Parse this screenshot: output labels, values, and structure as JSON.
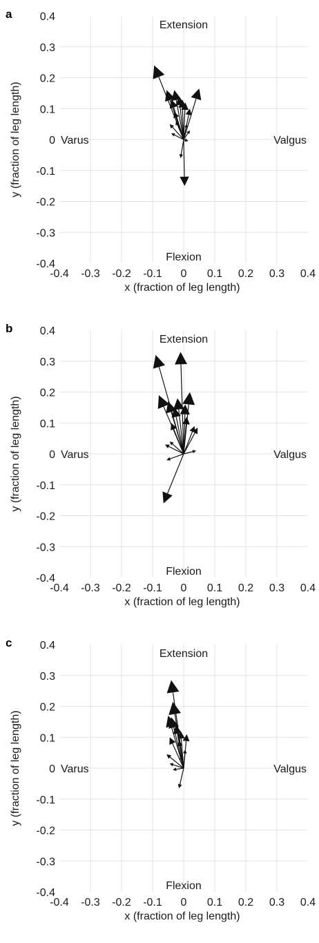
{
  "chart_data": [
    {
      "type": "quiver",
      "panel_label": "a",
      "xlabel": "x (fraction of leg length)",
      "ylabel": "y (fraction of leg length)",
      "xlim": [
        -0.4,
        0.4
      ],
      "ylim": [
        -0.4,
        0.4
      ],
      "xticks": [
        "-0.4",
        "-0.3",
        "-0.2",
        "-0.1",
        "0",
        "0.1",
        "0.2",
        "0.3",
        "0.4"
      ],
      "yticks": [
        "0.4",
        "0.3",
        "0.2",
        "0.1",
        "0",
        "-0.1",
        "-0.2",
        "-0.3",
        "-0.4"
      ],
      "grid": true,
      "annotations": {
        "top": "Extension",
        "bottom": "Flexion",
        "left": "Varus",
        "right": "Valgus"
      },
      "vectors": [
        {
          "dx": -0.095,
          "dy": 0.24
        },
        {
          "dx": -0.055,
          "dy": 0.16
        },
        {
          "dx": -0.04,
          "dy": 0.13
        },
        {
          "dx": -0.03,
          "dy": 0.16
        },
        {
          "dx": -0.015,
          "dy": 0.14
        },
        {
          "dx": -0.005,
          "dy": 0.13
        },
        {
          "dx": 0.005,
          "dy": 0.12
        },
        {
          "dx": -0.03,
          "dy": 0.09
        },
        {
          "dx": -0.045,
          "dy": 0.05
        },
        {
          "dx": -0.025,
          "dy": 0.06
        },
        {
          "dx": 0.02,
          "dy": 0.1
        },
        {
          "dx": 0.05,
          "dy": 0.165
        },
        {
          "dx": 0.01,
          "dy": 0.05
        },
        {
          "dx": -0.04,
          "dy": 0.02
        },
        {
          "dx": 0.02,
          "dy": 0.03
        },
        {
          "dx": 0.015,
          "dy": -0.005
        },
        {
          "dx": 0.003,
          "dy": -0.15
        },
        {
          "dx": -0.01,
          "dy": -0.06
        }
      ]
    },
    {
      "type": "quiver",
      "panel_label": "b",
      "xlabel": "x (fraction of leg length)",
      "ylabel": "y (fraction of leg length)",
      "xlim": [
        -0.4,
        0.4
      ],
      "ylim": [
        -0.4,
        0.4
      ],
      "xticks": [
        "-0.4",
        "-0.3",
        "-0.2",
        "-0.1",
        "0",
        "0.1",
        "0.2",
        "0.3",
        "0.4"
      ],
      "yticks": [
        "0.4",
        "0.3",
        "0.2",
        "0.1",
        "0",
        "-0.1",
        "-0.2",
        "-0.3",
        "-0.4"
      ],
      "grid": true,
      "annotations": {
        "top": "Extension",
        "bottom": "Flexion",
        "left": "Varus",
        "right": "Valgus"
      },
      "vectors": [
        {
          "dx": -0.09,
          "dy": 0.32
        },
        {
          "dx": -0.01,
          "dy": 0.33
        },
        {
          "dx": -0.08,
          "dy": 0.19
        },
        {
          "dx": -0.05,
          "dy": 0.17
        },
        {
          "dx": -0.03,
          "dy": 0.15
        },
        {
          "dx": -0.02,
          "dy": 0.18
        },
        {
          "dx": 0.005,
          "dy": 0.16
        },
        {
          "dx": 0.02,
          "dy": 0.2
        },
        {
          "dx": -0.04,
          "dy": 0.1
        },
        {
          "dx": 0.01,
          "dy": 0.12
        },
        {
          "dx": 0.035,
          "dy": 0.09
        },
        {
          "dx": 0.045,
          "dy": 0.085
        },
        {
          "dx": -0.06,
          "dy": 0.03
        },
        {
          "dx": -0.045,
          "dy": 0.04
        },
        {
          "dx": -0.055,
          "dy": -0.02
        },
        {
          "dx": 0.04,
          "dy": 0.01
        },
        {
          "dx": -0.065,
          "dy": -0.16
        }
      ]
    },
    {
      "type": "quiver",
      "panel_label": "c",
      "xlabel": "x (fraction of leg length)",
      "ylabel": "y (fraction of leg length)",
      "xlim": [
        -0.4,
        0.4
      ],
      "ylim": [
        -0.4,
        0.4
      ],
      "xticks": [
        "-0.4",
        "-0.3",
        "-0.2",
        "-0.1",
        "0",
        "0.1",
        "0.2",
        "0.3",
        "0.4"
      ],
      "yticks": [
        "0.4",
        "0.3",
        "0.2",
        "0.1",
        "0",
        "-0.1",
        "-0.2",
        "-0.3",
        "-0.4"
      ],
      "grid": true,
      "annotations": {
        "top": "Extension",
        "bottom": "Flexion",
        "left": "Varus",
        "right": "Valgus"
      },
      "vectors": [
        {
          "dx": -0.04,
          "dy": 0.285
        },
        {
          "dx": -0.035,
          "dy": 0.215
        },
        {
          "dx": -0.05,
          "dy": 0.17
        },
        {
          "dx": -0.04,
          "dy": 0.165
        },
        {
          "dx": -0.025,
          "dy": 0.14
        },
        {
          "dx": -0.01,
          "dy": 0.12
        },
        {
          "dx": 0.01,
          "dy": 0.11
        },
        {
          "dx": -0.045,
          "dy": 0.1
        },
        {
          "dx": -0.015,
          "dy": 0.09
        },
        {
          "dx": -0.055,
          "dy": 0.045
        },
        {
          "dx": -0.045,
          "dy": 0.015
        },
        {
          "dx": -0.035,
          "dy": -0.005
        },
        {
          "dx": -0.01,
          "dy": 0.04
        },
        {
          "dx": 0.005,
          "dy": 0.06
        },
        {
          "dx": -0.015,
          "dy": -0.065
        }
      ]
    }
  ]
}
